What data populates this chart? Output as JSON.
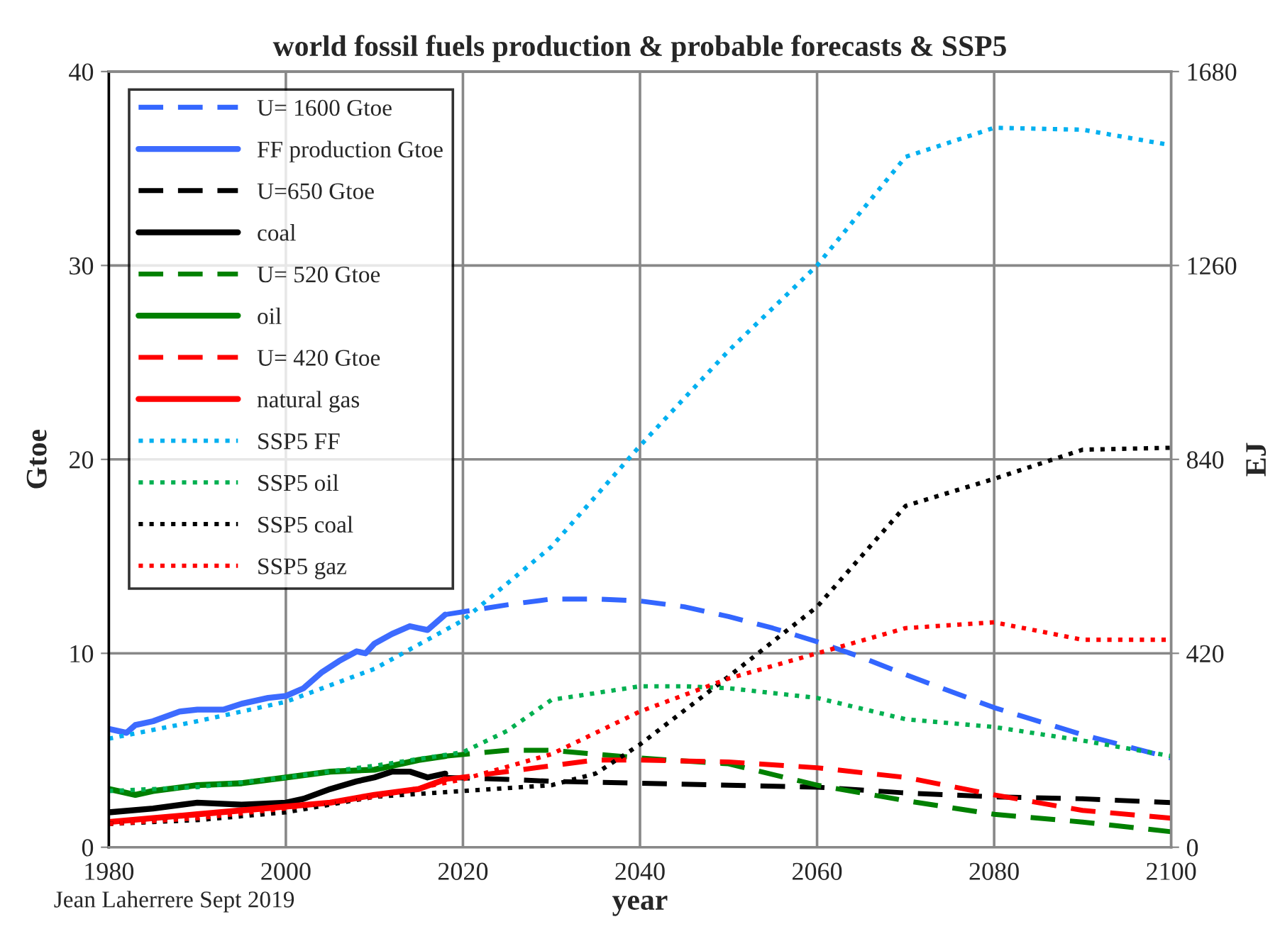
{
  "chart_data": {
    "type": "line",
    "title": "world fossil fuels production & probable forecasts & SSP5",
    "xlabel": "year",
    "ylabel": "Gtoe",
    "y2label": "EJ",
    "xlim": [
      1980,
      2100
    ],
    "xticks": [
      1980,
      2000,
      2020,
      2040,
      2060,
      2080,
      2100
    ],
    "ylim": [
      0,
      40
    ],
    "yticks": [
      0,
      10,
      20,
      30,
      40
    ],
    "y2lim": [
      0,
      1680
    ],
    "y2ticks": [
      0,
      420,
      840,
      1260,
      1680
    ],
    "grid": true,
    "legend": "top left",
    "annotations": [
      "Jean Laherrere Sept 2019"
    ],
    "series": [
      {
        "name": "U= 1600 Gtoe",
        "color": "#3366ff",
        "line_style": "dashed",
        "x": [
          2018,
          2025,
          2030,
          2035,
          2040,
          2045,
          2050,
          2055,
          2060,
          2065,
          2070,
          2080,
          2090,
          2100
        ],
        "values": [
          12.0,
          12.5,
          12.8,
          12.8,
          12.7,
          12.4,
          11.9,
          11.3,
          10.6,
          9.8,
          8.9,
          7.2,
          5.8,
          4.6
        ]
      },
      {
        "name": "FF production Gtoe",
        "color": "#3d6bff",
        "line_style": "solid",
        "x": [
          1980,
          1982,
          1983,
          1985,
          1988,
          1990,
          1993,
          1995,
          1998,
          2000,
          2002,
          2004,
          2006,
          2008,
          2009,
          2010,
          2012,
          2014,
          2015,
          2016,
          2018
        ],
        "values": [
          6.1,
          5.9,
          6.3,
          6.5,
          7.0,
          7.1,
          7.1,
          7.4,
          7.7,
          7.8,
          8.2,
          9.0,
          9.6,
          10.1,
          10.0,
          10.5,
          11.0,
          11.4,
          11.3,
          11.2,
          12.0
        ]
      },
      {
        "name": "U=650 Gtoe",
        "color": "#000000",
        "line_style": "dashed",
        "x": [
          2018,
          2025,
          2030,
          2040,
          2050,
          2060,
          2070,
          2080,
          2090,
          2100
        ],
        "values": [
          3.6,
          3.5,
          3.4,
          3.3,
          3.2,
          3.1,
          2.8,
          2.6,
          2.5,
          2.3
        ]
      },
      {
        "name": "coal",
        "color": "#000000",
        "line_style": "solid",
        "x": [
          1980,
          1985,
          1990,
          1995,
          2000,
          2002,
          2005,
          2008,
          2010,
          2012,
          2014,
          2016,
          2017,
          2018
        ],
        "values": [
          1.8,
          2.0,
          2.3,
          2.2,
          2.3,
          2.5,
          3.0,
          3.4,
          3.6,
          3.9,
          3.9,
          3.6,
          3.7,
          3.8
        ]
      },
      {
        "name": "U= 520 Gtoe",
        "color": "#008000",
        "line_style": "dashed",
        "x": [
          2018,
          2025,
          2030,
          2035,
          2040,
          2050,
          2060,
          2070,
          2080,
          2090,
          2100
        ],
        "values": [
          4.7,
          5.0,
          5.0,
          4.8,
          4.6,
          4.3,
          3.2,
          2.4,
          1.7,
          1.3,
          0.8
        ]
      },
      {
        "name": "oil",
        "color": "#008000",
        "line_style": "solid",
        "x": [
          1980,
          1983,
          1985,
          1990,
          1995,
          2000,
          2005,
          2010,
          2015,
          2018
        ],
        "values": [
          3.0,
          2.7,
          2.9,
          3.2,
          3.3,
          3.6,
          3.9,
          4.0,
          4.5,
          4.7
        ]
      },
      {
        "name": "U= 420 Gtoe",
        "color": "#ff0000",
        "line_style": "dashed",
        "x": [
          2018,
          2025,
          2030,
          2035,
          2040,
          2050,
          2060,
          2070,
          2080,
          2090,
          2100
        ],
        "values": [
          3.5,
          3.9,
          4.2,
          4.5,
          4.5,
          4.4,
          4.1,
          3.6,
          2.7,
          1.9,
          1.5
        ]
      },
      {
        "name": "natural gas",
        "color": "#ff0000",
        "line_style": "solid",
        "x": [
          1980,
          1985,
          1990,
          1995,
          2000,
          2005,
          2010,
          2015,
          2018
        ],
        "values": [
          1.3,
          1.5,
          1.7,
          1.9,
          2.1,
          2.3,
          2.7,
          3.0,
          3.5
        ]
      },
      {
        "name": "SSP5 FF",
        "color": "#00b0f0",
        "line_style": "dotted",
        "x": [
          1980,
          1990,
          2000,
          2010,
          2020,
          2030,
          2040,
          2050,
          2060,
          2070,
          2080,
          2090,
          2100
        ],
        "values": [
          5.6,
          6.5,
          7.5,
          9.2,
          11.7,
          15.5,
          20.7,
          25.6,
          30.0,
          35.6,
          37.1,
          37.0,
          36.2
        ]
      },
      {
        "name": "SSP5 oil",
        "color": "#00b050",
        "line_style": "dotted",
        "x": [
          1980,
          1990,
          2000,
          2010,
          2020,
          2025,
          2030,
          2040,
          2045,
          2050,
          2060,
          2070,
          2080,
          2090,
          2100
        ],
        "values": [
          2.9,
          3.1,
          3.6,
          4.2,
          4.9,
          6.0,
          7.6,
          8.3,
          8.3,
          8.2,
          7.7,
          6.6,
          6.2,
          5.5,
          4.7
        ]
      },
      {
        "name": "SSP5 coal",
        "color": "#000000",
        "line_style": "dotted",
        "x": [
          1980,
          1990,
          2000,
          2010,
          2020,
          2030,
          2035,
          2040,
          2050,
          2060,
          2070,
          2080,
          2090,
          2100
        ],
        "values": [
          1.2,
          1.4,
          1.8,
          2.6,
          2.9,
          3.2,
          3.8,
          5.3,
          8.8,
          12.4,
          17.6,
          19.0,
          20.5,
          20.6
        ]
      },
      {
        "name": "SSP5 gaz",
        "color": "#ff0000",
        "line_style": "dotted",
        "x": [
          1980,
          1990,
          2000,
          2010,
          2020,
          2030,
          2040,
          2050,
          2060,
          2070,
          2080,
          2090,
          2100
        ],
        "values": [
          1.2,
          1.5,
          2.0,
          2.6,
          3.5,
          4.8,
          7.0,
          8.7,
          10.0,
          11.3,
          11.6,
          10.7,
          10.7
        ]
      }
    ]
  }
}
